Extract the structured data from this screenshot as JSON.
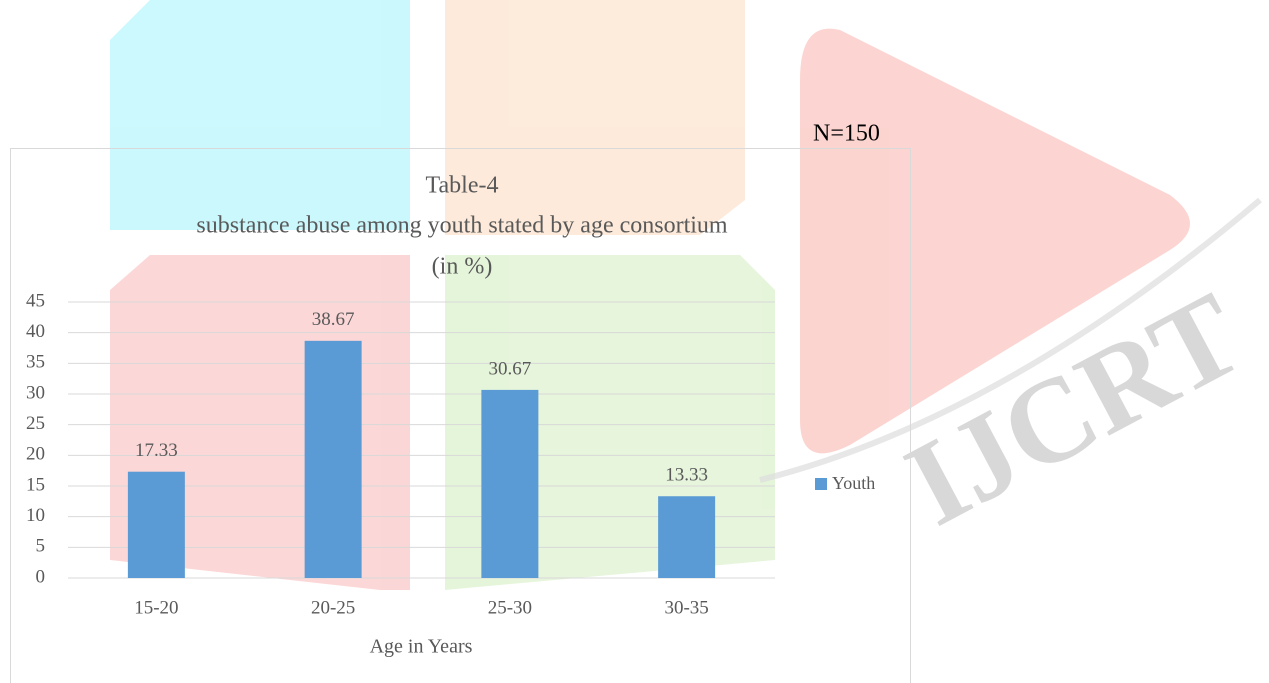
{
  "chart_data": {
    "type": "bar",
    "title": "Table-4",
    "subtitle": [
      "substance abuse among youth stated by age consortium",
      "(in %)"
    ],
    "annotation": "N=150",
    "watermark": "IJCRT",
    "x_label": "Age in Years",
    "categories": [
      "15-20",
      "20-25",
      "25-30",
      "30-35"
    ],
    "series": [
      {
        "name": "Youth",
        "color": "#5b9bd5",
        "values": [
          17.33,
          38.67,
          30.67,
          13.33
        ]
      }
    ],
    "ylim": [
      0,
      45
    ],
    "yticks": [
      0,
      5,
      10,
      15,
      20,
      25,
      30,
      35,
      40,
      45
    ],
    "grid": true,
    "legend": "right"
  }
}
